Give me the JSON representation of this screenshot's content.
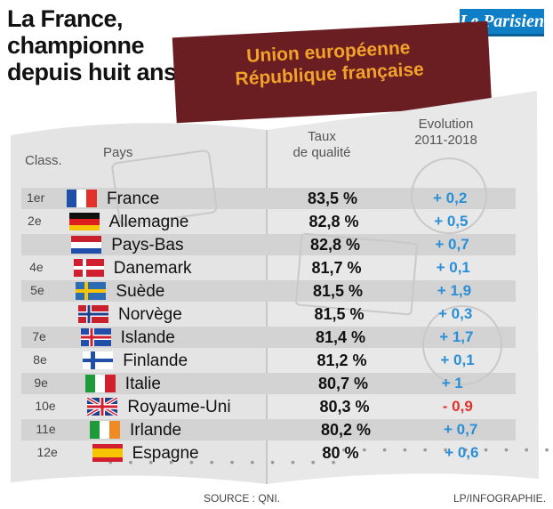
{
  "headline": [
    "La France,",
    "championne",
    "depuis huit ans"
  ],
  "logo_text": "Le Parisien",
  "cover_lines": [
    "Union européenne",
    "République française"
  ],
  "columns": {
    "rank": "Class.",
    "country": "Pays",
    "rate": [
      "Taux",
      "de qualité"
    ],
    "evolution": [
      "Evolution",
      "2011-2018"
    ]
  },
  "colors": {
    "positive": "#2a8fd6",
    "negative": "#e2302a",
    "cover": "#6a1e22",
    "cover_text": "#f2a22a",
    "logo": "#0e7fc6"
  },
  "chart_data": {
    "type": "table",
    "columns": [
      "Class.",
      "Pays",
      "Taux de qualité",
      "Evolution 2011-2018"
    ],
    "rows": [
      {
        "rank": "1er",
        "country": "France",
        "flag": "france-flag",
        "rate": "83,5 %",
        "evolution": "+ 0,2"
      },
      {
        "rank": "2e",
        "country": "Allemagne",
        "flag": "germany-flag",
        "rate": "82,8 %",
        "evolution": "+ 0,5"
      },
      {
        "rank": "",
        "country": "Pays-Bas",
        "flag": "netherlands-flag",
        "rate": "82,8 %",
        "evolution": "+ 0,7"
      },
      {
        "rank": "4e",
        "country": "Danemark",
        "flag": "denmark-flag",
        "rate": "81,7 %",
        "evolution": "+ 0,1"
      },
      {
        "rank": "5e",
        "country": "Suède",
        "flag": "sweden-flag",
        "rate": "81,5 %",
        "evolution": "+ 1,9"
      },
      {
        "rank": "",
        "country": "Norvège",
        "flag": "norway-flag",
        "rate": "81,5 %",
        "evolution": "+ 0,3"
      },
      {
        "rank": "7e",
        "country": "Islande",
        "flag": "iceland-flag",
        "rate": "81,4 %",
        "evolution": "+ 1,7"
      },
      {
        "rank": "8e",
        "country": "Finlande",
        "flag": "finland-flag",
        "rate": "81,2 %",
        "evolution": "+ 0,1"
      },
      {
        "rank": "9e",
        "country": "Italie",
        "flag": "italy-flag",
        "rate": "80,7 %",
        "evolution": "+ 1"
      },
      {
        "rank": "10e",
        "country": "Royaume-Uni",
        "flag": "uk-flag",
        "rate": "80,3 %",
        "evolution": "- 0,9"
      },
      {
        "rank": "11e",
        "country": "Irlande",
        "flag": "ireland-flag",
        "rate": "80,2 %",
        "evolution": "+ 0,7"
      },
      {
        "rank": "12e",
        "country": "Espagne",
        "flag": "spain-flag",
        "rate": "80 %",
        "evolution": "+ 0,6"
      }
    ]
  },
  "source": "SOURCE : QNI.",
  "credit": "LP/INFOGRAPHIE."
}
